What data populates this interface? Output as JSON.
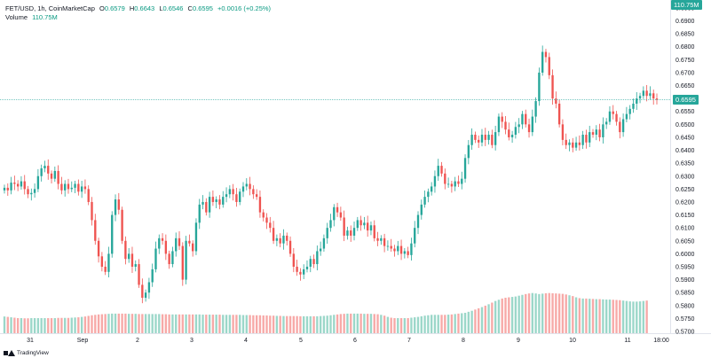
{
  "legend": {
    "symbol": "FET/USD, 1h, CoinMarketCap",
    "open_label": "O",
    "open": "0.6579",
    "high_label": "H",
    "high": "0.6643",
    "low_label": "L",
    "low": "0.6546",
    "close_label": "C",
    "close": "0.6595",
    "change": "+0.0016 (+0.25%)",
    "volume_label": "Volume",
    "volume_value": "110.75M"
  },
  "price_tag": "0.6595",
  "volume_tag": "110.75M",
  "footer": {
    "brand": "TradingView"
  },
  "colors": {
    "up": "#26a69a",
    "down": "#ef5350",
    "vol_up": "#9bd7c9",
    "vol_down": "#f7a9a7",
    "price_line": "#26a69a",
    "volume_tag": "#26a69a"
  },
  "chart_data": {
    "type": "candlestick",
    "y_ticks": [
      "0.6950",
      "0.6900",
      "0.6850",
      "0.6800",
      "0.6750",
      "0.6700",
      "0.6650",
      "0.6600",
      "0.6550",
      "0.6500",
      "0.6450",
      "0.6400",
      "0.6350",
      "0.6300",
      "0.6250",
      "0.6200",
      "0.6150",
      "0.6100",
      "0.6050",
      "0.6000",
      "0.5950",
      "0.5900",
      "0.5850",
      "0.5800",
      "0.5750",
      "0.5700"
    ],
    "ylim": [
      0.57,
      0.696
    ],
    "x_ticks": [
      "31",
      "Sep",
      "2",
      "3",
      "4",
      "5",
      "6",
      "7",
      "8",
      "9",
      "10",
      "11",
      "18:00"
    ],
    "closes": [
      0.6255,
      0.6245,
      0.6275,
      0.627,
      0.626,
      0.628,
      0.625,
      0.623,
      0.6235,
      0.625,
      0.63,
      0.633,
      0.634,
      0.631,
      0.629,
      0.632,
      0.627,
      0.6245,
      0.627,
      0.625,
      0.6255,
      0.627,
      0.624,
      0.626,
      0.625,
      0.62,
      0.613,
      0.605,
      0.599,
      0.595,
      0.593,
      0.6,
      0.615,
      0.621,
      0.617,
      0.605,
      0.598,
      0.6,
      0.595,
      0.596,
      0.588,
      0.583,
      0.585,
      0.589,
      0.594,
      0.602,
      0.606,
      0.605,
      0.6,
      0.596,
      0.601,
      0.606,
      0.603,
      0.59,
      0.605,
      0.604,
      0.601,
      0.612,
      0.619,
      0.62,
      0.616,
      0.622,
      0.62,
      0.621,
      0.619,
      0.622,
      0.623,
      0.625,
      0.623,
      0.62,
      0.624,
      0.626,
      0.627,
      0.625,
      0.623,
      0.622,
      0.616,
      0.614,
      0.612,
      0.61,
      0.605,
      0.606,
      0.604,
      0.607,
      0.605,
      0.6,
      0.595,
      0.593,
      0.592,
      0.594,
      0.595,
      0.598,
      0.596,
      0.601,
      0.602,
      0.606,
      0.61,
      0.613,
      0.618,
      0.616,
      0.614,
      0.607,
      0.609,
      0.607,
      0.61,
      0.613,
      0.611,
      0.612,
      0.609,
      0.611,
      0.606,
      0.605,
      0.606,
      0.603,
      0.603,
      0.602,
      0.601,
      0.603,
      0.6,
      0.601,
      0.5995,
      0.604,
      0.61,
      0.615,
      0.619,
      0.622,
      0.624,
      0.626,
      0.63,
      0.634,
      0.631,
      0.627,
      0.627,
      0.626,
      0.628,
      0.627,
      0.629,
      0.637,
      0.642,
      0.646,
      0.644,
      0.643,
      0.646,
      0.644,
      0.646,
      0.642,
      0.647,
      0.653,
      0.651,
      0.648,
      0.645,
      0.646,
      0.649,
      0.65,
      0.654,
      0.65,
      0.647,
      0.653,
      0.659,
      0.67,
      0.678,
      0.676,
      0.669,
      0.66,
      0.658,
      0.65,
      0.644,
      0.642,
      0.643,
      0.641,
      0.643,
      0.642,
      0.646,
      0.643,
      0.647,
      0.646,
      0.648,
      0.645,
      0.65,
      0.651,
      0.655,
      0.654,
      0.651,
      0.647,
      0.652,
      0.654,
      0.656,
      0.658,
      0.66,
      0.661,
      0.663,
      0.661,
      0.662,
      0.66,
      0.6595
    ],
    "volumes": [
      0.82,
      0.8,
      0.78,
      0.76,
      0.74,
      0.74,
      0.73,
      0.73,
      0.74,
      0.74,
      0.74,
      0.74,
      0.74,
      0.74,
      0.74,
      0.74,
      0.75,
      0.75,
      0.75,
      0.75,
      0.76,
      0.77,
      0.78,
      0.8,
      0.82,
      0.85,
      0.88,
      0.9,
      0.92,
      0.93,
      0.94,
      0.95,
      0.96,
      0.96,
      0.96,
      0.96,
      0.96,
      0.95,
      0.95,
      0.95,
      0.94,
      0.94,
      0.94,
      0.94,
      0.94,
      0.94,
      0.94,
      0.93,
      0.93,
      0.92,
      0.92,
      0.92,
      0.92,
      0.92,
      0.92,
      0.92,
      0.92,
      0.92,
      0.92,
      0.91,
      0.91,
      0.91,
      0.91,
      0.91,
      0.91,
      0.9,
      0.9,
      0.9,
      0.9,
      0.9,
      0.9,
      0.89,
      0.89,
      0.89,
      0.88,
      0.88,
      0.88,
      0.87,
      0.87,
      0.86,
      0.86,
      0.85,
      0.85,
      0.84,
      0.84,
      0.84,
      0.84,
      0.84,
      0.83,
      0.83,
      0.83,
      0.83,
      0.83,
      0.83,
      0.84,
      0.85,
      0.86,
      0.88,
      0.9,
      0.92,
      0.94,
      0.95,
      0.96,
      0.96,
      0.96,
      0.96,
      0.96,
      0.95,
      0.95,
      0.95,
      0.94,
      0.93,
      0.9,
      0.86,
      0.8,
      0.76,
      0.74,
      0.74,
      0.74,
      0.74,
      0.74,
      0.76,
      0.78,
      0.8,
      0.83,
      0.86,
      0.88,
      0.9,
      0.9,
      0.9,
      0.9,
      0.9,
      0.91,
      0.92,
      0.94,
      0.96,
      0.98,
      1.0,
      1.05,
      1.1,
      1.16,
      1.22,
      1.28,
      1.35,
      1.42,
      1.5,
      1.58,
      1.64,
      1.7,
      1.74,
      1.76,
      1.78,
      1.8,
      1.84,
      1.88,
      1.92,
      1.95,
      1.97,
      1.95,
      1.92,
      1.94,
      1.96,
      1.97,
      1.96,
      1.95,
      1.94,
      1.93,
      1.9,
      1.86,
      1.82,
      1.76,
      1.72,
      1.7,
      1.7,
      1.69,
      1.68,
      1.67,
      1.67,
      1.66,
      1.65,
      1.65,
      1.64,
      1.63,
      1.62,
      1.6,
      1.58,
      1.56,
      1.55,
      1.55,
      1.56,
      1.58,
      1.6
    ]
  }
}
